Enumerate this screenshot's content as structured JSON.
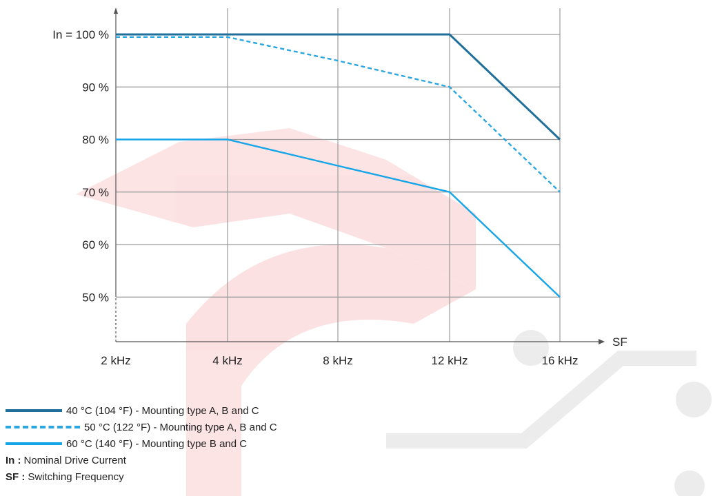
{
  "chart_data": {
    "type": "line",
    "categories": [
      "2 kHz",
      "4 kHz",
      "8 kHz",
      "12 kHz",
      "16 kHz"
    ],
    "x_end_label": "SF",
    "y_ticks": [
      {
        "value": 100,
        "label": "In = 100 %"
      },
      {
        "value": 90,
        "label": "90 %"
      },
      {
        "value": 80,
        "label": "80 %"
      },
      {
        "value": 70,
        "label": "70 %"
      },
      {
        "value": 60,
        "label": "60 %"
      },
      {
        "value": 50,
        "label": "50 %"
      }
    ],
    "ylim": [
      40,
      104
    ],
    "grid": true,
    "series": [
      {
        "name": "40 °C (104 °F) - Mounting type A, B and C",
        "values": [
          100,
          100,
          100,
          100,
          80
        ],
        "color": "#1f6f9a",
        "style": "solid"
      },
      {
        "name": "50 °C (122 °F) - Mounting type A, B and C",
        "values": [
          99.5,
          99.5,
          95,
          90,
          70
        ],
        "color": "#2aa6e0",
        "style": "dashed"
      },
      {
        "name": "60 °C (140 °F) - Mounting type B and C",
        "values": [
          80,
          80,
          75,
          70,
          50
        ],
        "color": "#16a6e8",
        "style": "solid"
      }
    ]
  },
  "definitions": [
    {
      "key": "In :",
      "text": "Nominal Drive Current"
    },
    {
      "key": "SF :",
      "text": "Switching Frequency"
    }
  ],
  "colors": {
    "grid": "#9a9a9a",
    "axis": "#555555",
    "watermark": "#e8242b"
  }
}
